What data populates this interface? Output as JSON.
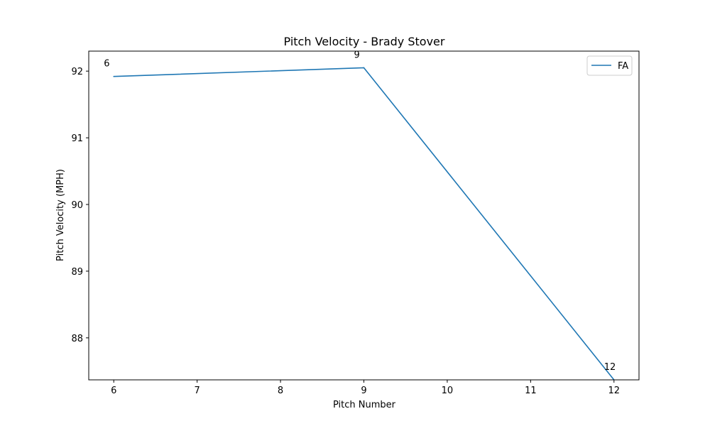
{
  "chart_data": {
    "type": "line",
    "title": "Pitch Velocity - Brady Stover",
    "xlabel": "Pitch Number",
    "ylabel": "Pitch Velocity (MPH)",
    "xlim": [
      5.7,
      12.3
    ],
    "ylim": [
      87.37,
      92.3
    ],
    "xticks": [
      6,
      7,
      8,
      9,
      10,
      11,
      12
    ],
    "yticks": [
      88,
      89,
      90,
      91,
      92
    ],
    "grid": false,
    "legend_position": "top-right",
    "series": [
      {
        "name": "FA",
        "color": "#1f77b4",
        "x": [
          6,
          9,
          12
        ],
        "y": [
          91.92,
          92.05,
          87.37
        ]
      }
    ],
    "annotations": [
      {
        "text": "6",
        "x": 6,
        "y": 91.92
      },
      {
        "text": "9",
        "x": 9,
        "y": 92.05
      },
      {
        "text": "12",
        "x": 12,
        "y": 87.37
      }
    ]
  }
}
